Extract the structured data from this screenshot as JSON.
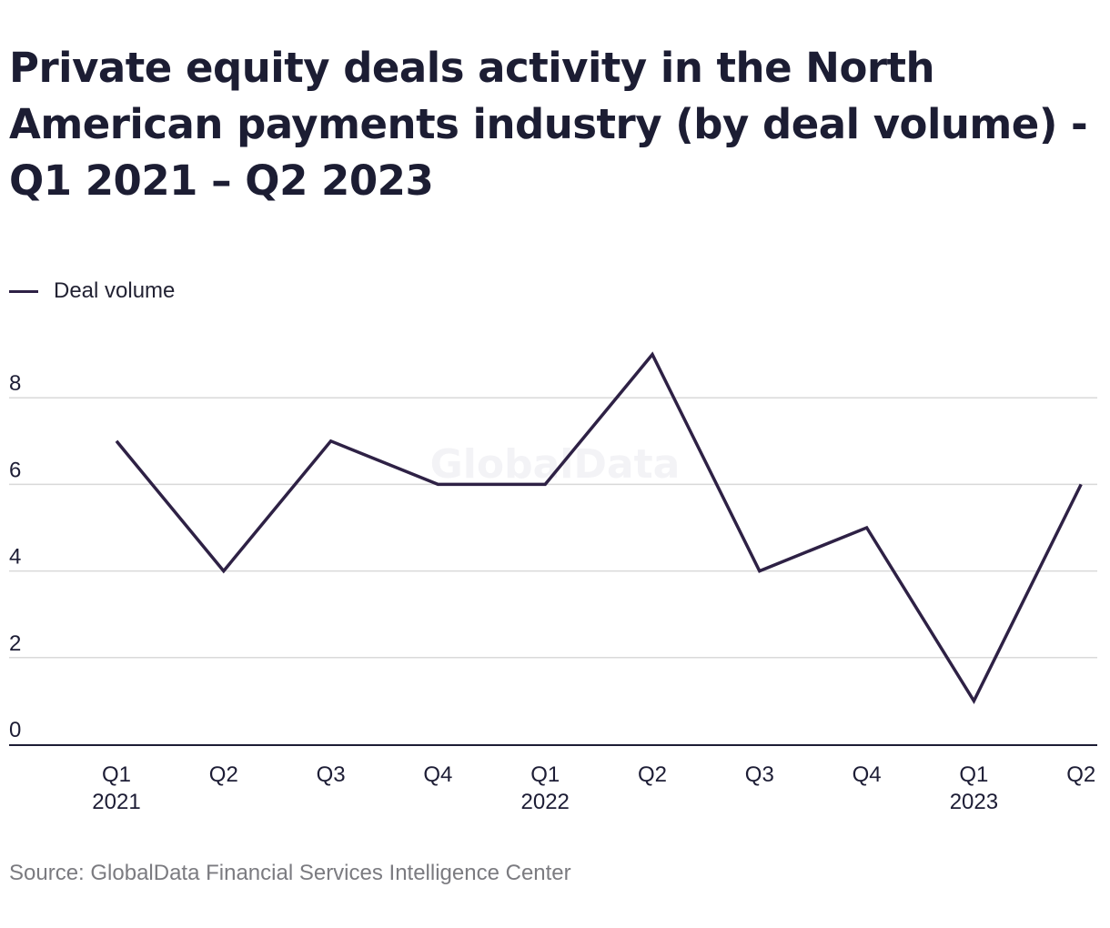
{
  "chart_data": {
    "type": "line",
    "title": "Private equity deals activity in the North American payments industry (by deal volume) - Q1 2021 – Q2 2023",
    "categories": [
      {
        "quarter": "Q1",
        "year": "2021"
      },
      {
        "quarter": "Q2",
        "year": ""
      },
      {
        "quarter": "Q3",
        "year": ""
      },
      {
        "quarter": "Q4",
        "year": ""
      },
      {
        "quarter": "Q1",
        "year": "2022"
      },
      {
        "quarter": "Q2",
        "year": ""
      },
      {
        "quarter": "Q3",
        "year": ""
      },
      {
        "quarter": "Q4",
        "year": ""
      },
      {
        "quarter": "Q1",
        "year": "2023"
      },
      {
        "quarter": "Q2",
        "year": ""
      }
    ],
    "series": [
      {
        "name": "Deal volume",
        "values": [
          7,
          4,
          7,
          6,
          6,
          9,
          4,
          5,
          1,
          6
        ],
        "color": "#2e2145"
      }
    ],
    "y_ticks": [
      0,
      2,
      4,
      6,
      8
    ],
    "ylim": [
      0,
      9
    ],
    "xlabel": "",
    "ylabel": "",
    "grid": true,
    "legend_position": "top-left"
  },
  "watermark": "GlobalData",
  "source": "Source: GlobalData Financial Services Intelligence Center",
  "colors": {
    "line": "#2e2145",
    "grid": "#d9d9d9",
    "axis": "#1d1d35",
    "text": "#1d1d35",
    "source": "#7b7b80"
  }
}
